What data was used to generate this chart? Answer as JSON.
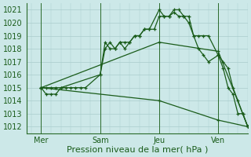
{
  "bg_color": "#cce8e8",
  "grid_color": "#aacccc",
  "line_color": "#1a5c1a",
  "xlabel": "Pression niveau de la mer( hPa )",
  "xlabel_fontsize": 8,
  "tick_fontsize": 7,
  "ylim": [
    1011.5,
    1021.5
  ],
  "yticks": [
    1012,
    1013,
    1014,
    1015,
    1016,
    1017,
    1018,
    1019,
    1020,
    1021
  ],
  "day_labels": [
    "Mer",
    "Sam",
    "Jeu",
    "Ven"
  ],
  "day_positions": [
    0,
    24,
    48,
    72
  ],
  "vline_positions": [
    0,
    24,
    48,
    72
  ],
  "xlim": [
    -6,
    84
  ],
  "series": [
    {
      "x": [
        0,
        2,
        4,
        6,
        8,
        24,
        26,
        28,
        30,
        32,
        34,
        36,
        38,
        40,
        42,
        44,
        46,
        48,
        50,
        52,
        54,
        56,
        58,
        60,
        62,
        64,
        66,
        68,
        72,
        74,
        76,
        78,
        80,
        82,
        84
      ],
      "y": [
        1015,
        1015,
        1015,
        1015,
        1015,
        1016,
        1018,
        1018.5,
        1018,
        1018.5,
        1018.5,
        1018.5,
        1019,
        1019,
        1019.5,
        1019.5,
        1019.5,
        1020.5,
        1020.5,
        1020.5,
        1020.8,
        1020.5,
        1020.5,
        1020.5,
        1019,
        1018,
        1017.5,
        1017,
        1017.5,
        1016.5,
        1015,
        1014.5,
        1013,
        1013,
        1012
      ]
    },
    {
      "x": [
        0,
        2,
        4,
        6,
        8,
        10,
        12,
        14,
        16,
        18,
        24,
        26,
        28,
        30,
        32,
        34,
        36,
        38,
        40,
        42,
        44,
        48,
        50,
        52,
        54,
        56,
        58,
        60,
        62,
        64,
        66,
        68,
        72,
        74,
        76,
        78,
        80,
        82,
        84
      ],
      "y": [
        1015,
        1014.5,
        1014.5,
        1014.5,
        1015,
        1015,
        1015,
        1015,
        1015,
        1015,
        1016,
        1018.5,
        1018,
        1018,
        1018.5,
        1018,
        1018.5,
        1019,
        1019,
        1019.5,
        1019.5,
        1021,
        1020.5,
        1020.5,
        1021,
        1021,
        1020.5,
        1020,
        1019,
        1019,
        1019,
        1019,
        1017.5,
        1017,
        1016.5,
        1015,
        1014,
        1013,
        1012
      ]
    },
    {
      "x": [
        0,
        48,
        72,
        84
      ],
      "y": [
        1015,
        1018.5,
        1017.8,
        1012
      ]
    },
    {
      "x": [
        0,
        48,
        72,
        84
      ],
      "y": [
        1015,
        1014,
        1012.5,
        1012
      ]
    }
  ]
}
